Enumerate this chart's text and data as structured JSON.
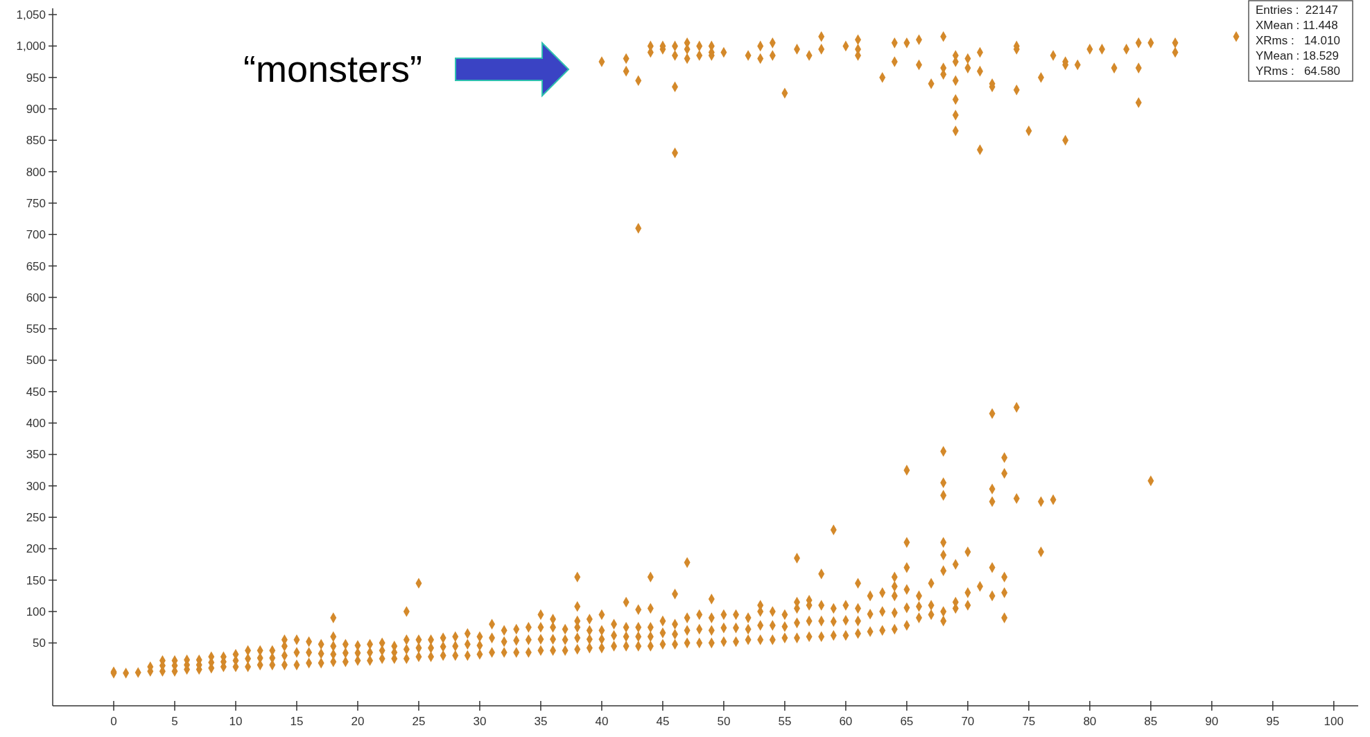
{
  "chart_data": {
    "type": "scatter",
    "xlim": [
      -5,
      102
    ],
    "ylim": [
      -50,
      1060
    ],
    "xticks": [
      0,
      5,
      10,
      15,
      20,
      25,
      30,
      35,
      40,
      45,
      50,
      55,
      60,
      65,
      70,
      75,
      80,
      85,
      90,
      95,
      100
    ],
    "yticks": [
      50,
      100,
      150,
      200,
      250,
      300,
      350,
      400,
      450,
      500,
      550,
      600,
      650,
      700,
      750,
      800,
      850,
      900,
      950,
      {
        "value": 1000,
        "label": "1,000"
      },
      {
        "value": 1050,
        "label": "1,050"
      }
    ],
    "marker": "diamond",
    "annotations": [
      "“monsters”",
      "Entries :  22147",
      "XMean : 11.448",
      "XRms :   14.010",
      "YMean : 18.529",
      "YRms :   64.580"
    ],
    "series": [
      {
        "color": "#d4892a",
        "x": [
          0,
          0,
          1,
          2,
          3,
          3,
          4,
          4,
          4,
          5,
          5,
          5,
          6,
          6,
          6,
          7,
          7,
          7,
          8,
          8,
          8,
          9,
          9,
          9,
          10,
          10,
          10,
          11,
          11,
          11,
          12,
          12,
          12,
          13,
          13,
          13,
          14,
          14,
          14,
          14,
          15,
          15,
          15,
          16,
          16,
          16,
          17,
          17,
          17,
          18,
          18,
          18,
          18,
          18,
          19,
          19,
          19,
          20,
          20,
          20,
          21,
          21,
          21,
          22,
          22,
          22,
          23,
          23,
          23,
          24,
          24,
          24,
          24,
          25,
          25,
          25,
          25,
          26,
          26,
          26,
          27,
          27,
          27,
          28,
          28,
          28,
          29,
          29,
          29,
          30,
          30,
          30,
          31,
          31,
          31,
          32,
          32,
          32,
          33,
          33,
          33,
          34,
          34,
          34,
          35,
          35,
          35,
          35,
          36,
          36,
          36,
          36,
          37,
          37,
          37,
          38,
          38,
          38,
          38,
          38,
          38,
          39,
          39,
          39,
          39,
          40,
          40,
          40,
          40,
          41,
          41,
          41,
          42,
          42,
          42,
          42,
          43,
          43,
          43,
          43,
          44,
          44,
          44,
          44,
          44,
          45,
          45,
          45,
          46,
          46,
          46,
          46,
          47,
          47,
          47,
          47,
          48,
          48,
          48,
          49,
          49,
          49,
          49,
          50,
          50,
          50,
          51,
          51,
          51,
          52,
          52,
          52,
          53,
          53,
          53,
          53,
          54,
          54,
          54,
          55,
          55,
          55,
          56,
          56,
          56,
          56,
          56,
          57,
          57,
          57,
          57,
          58,
          58,
          58,
          58,
          59,
          59,
          59,
          59,
          60,
          60,
          60,
          61,
          61,
          61,
          61,
          62,
          62,
          62,
          63,
          63,
          63,
          64,
          64,
          64,
          64,
          64,
          65,
          65,
          65,
          65,
          65,
          65,
          66,
          66,
          66,
          67,
          67,
          67,
          68,
          68,
          68,
          68,
          68,
          68,
          68,
          68,
          69,
          69,
          69,
          70,
          70,
          70,
          71,
          72,
          72,
          72,
          72,
          72,
          73,
          73,
          73,
          73,
          73,
          74,
          74,
          76,
          76,
          77,
          85,
          40,
          42,
          42,
          43,
          43,
          44,
          44,
          45,
          45,
          46,
          46,
          46,
          46,
          47,
          47,
          47,
          48,
          48,
          49,
          49,
          49,
          50,
          52,
          53,
          53,
          54,
          54,
          55,
          56,
          57,
          58,
          58,
          60,
          61,
          61,
          61,
          63,
          64,
          64,
          65,
          66,
          66,
          67,
          68,
          68,
          68,
          69,
          69,
          69,
          69,
          69,
          69,
          70,
          70,
          71,
          71,
          71,
          72,
          72,
          74,
          74,
          74,
          75,
          76,
          77,
          78,
          78,
          78,
          79,
          80,
          81,
          82,
          83,
          84,
          84,
          84,
          85,
          87,
          87,
          92
        ],
        "values": [
          2,
          4,
          2,
          3,
          5,
          12,
          5,
          14,
          22,
          5,
          14,
          22,
          8,
          15,
          23,
          8,
          15,
          23,
          10,
          19,
          28,
          12,
          20,
          28,
          12,
          22,
          32,
          12,
          25,
          38,
          15,
          26,
          38,
          15,
          26,
          38,
          15,
          30,
          45,
          55,
          15,
          35,
          55,
          18,
          35,
          52,
          18,
          33,
          48,
          20,
          32,
          45,
          60,
          90,
          20,
          34,
          48,
          22,
          34,
          46,
          22,
          35,
          48,
          25,
          38,
          50,
          25,
          35,
          45,
          25,
          40,
          55,
          100,
          28,
          42,
          55,
          145,
          28,
          42,
          55,
          30,
          44,
          58,
          30,
          45,
          60,
          30,
          48,
          65,
          32,
          46,
          60,
          35,
          58,
          80,
          35,
          52,
          70,
          35,
          54,
          72,
          35,
          55,
          75,
          38,
          56,
          75,
          95,
          38,
          56,
          75,
          88,
          38,
          55,
          72,
          40,
          58,
          75,
          85,
          108,
          155,
          42,
          56,
          70,
          88,
          42,
          56,
          70,
          95,
          45,
          62,
          80,
          45,
          60,
          75,
          115,
          45,
          60,
          75,
          103,
          45,
          60,
          75,
          105,
          155,
          48,
          66,
          85,
          48,
          64,
          80,
          128,
          50,
          70,
          90,
          178,
          50,
          72,
          95,
          50,
          70,
          90,
          120,
          52,
          74,
          95,
          52,
          74,
          95,
          55,
          72,
          90,
          55,
          78,
          100,
          110,
          55,
          78,
          100,
          58,
          76,
          95,
          58,
          82,
          105,
          115,
          185,
          60,
          85,
          110,
          118,
          60,
          85,
          110,
          160,
          62,
          84,
          105,
          230,
          62,
          86,
          110,
          65,
          85,
          105,
          145,
          68,
          96,
          125,
          70,
          100,
          130,
          72,
          98,
          125,
          140,
          155,
          78,
          106,
          135,
          170,
          210,
          325,
          90,
          108,
          125,
          95,
          110,
          145,
          85,
          100,
          165,
          190,
          210,
          285,
          305,
          355,
          105,
          115,
          175,
          110,
          130,
          195,
          140,
          125,
          170,
          275,
          295,
          415,
          90,
          130,
          155,
          320,
          345,
          280,
          425,
          195,
          275,
          278,
          308,
          975,
          980,
          960,
          945,
          710,
          990,
          1000,
          1000,
          995,
          1000,
          985,
          935,
          830,
          1005,
          995,
          980,
          1000,
          985,
          1000,
          990,
          985,
          990,
          985,
          1000,
          980,
          1005,
          985,
          925,
          995,
          985,
          1015,
          995,
          1000,
          1010,
          995,
          985,
          950,
          1005,
          975,
          1005,
          1010,
          970,
          940,
          1015,
          965,
          955,
          985,
          975,
          945,
          915,
          890,
          865,
          980,
          965,
          990,
          960,
          835,
          940,
          935,
          1000,
          995,
          930,
          865,
          950,
          985,
          975,
          970,
          850,
          970,
          995,
          995,
          965,
          995,
          1005,
          965,
          910,
          1005,
          1005,
          990,
          1015
        ]
      }
    ]
  }
}
